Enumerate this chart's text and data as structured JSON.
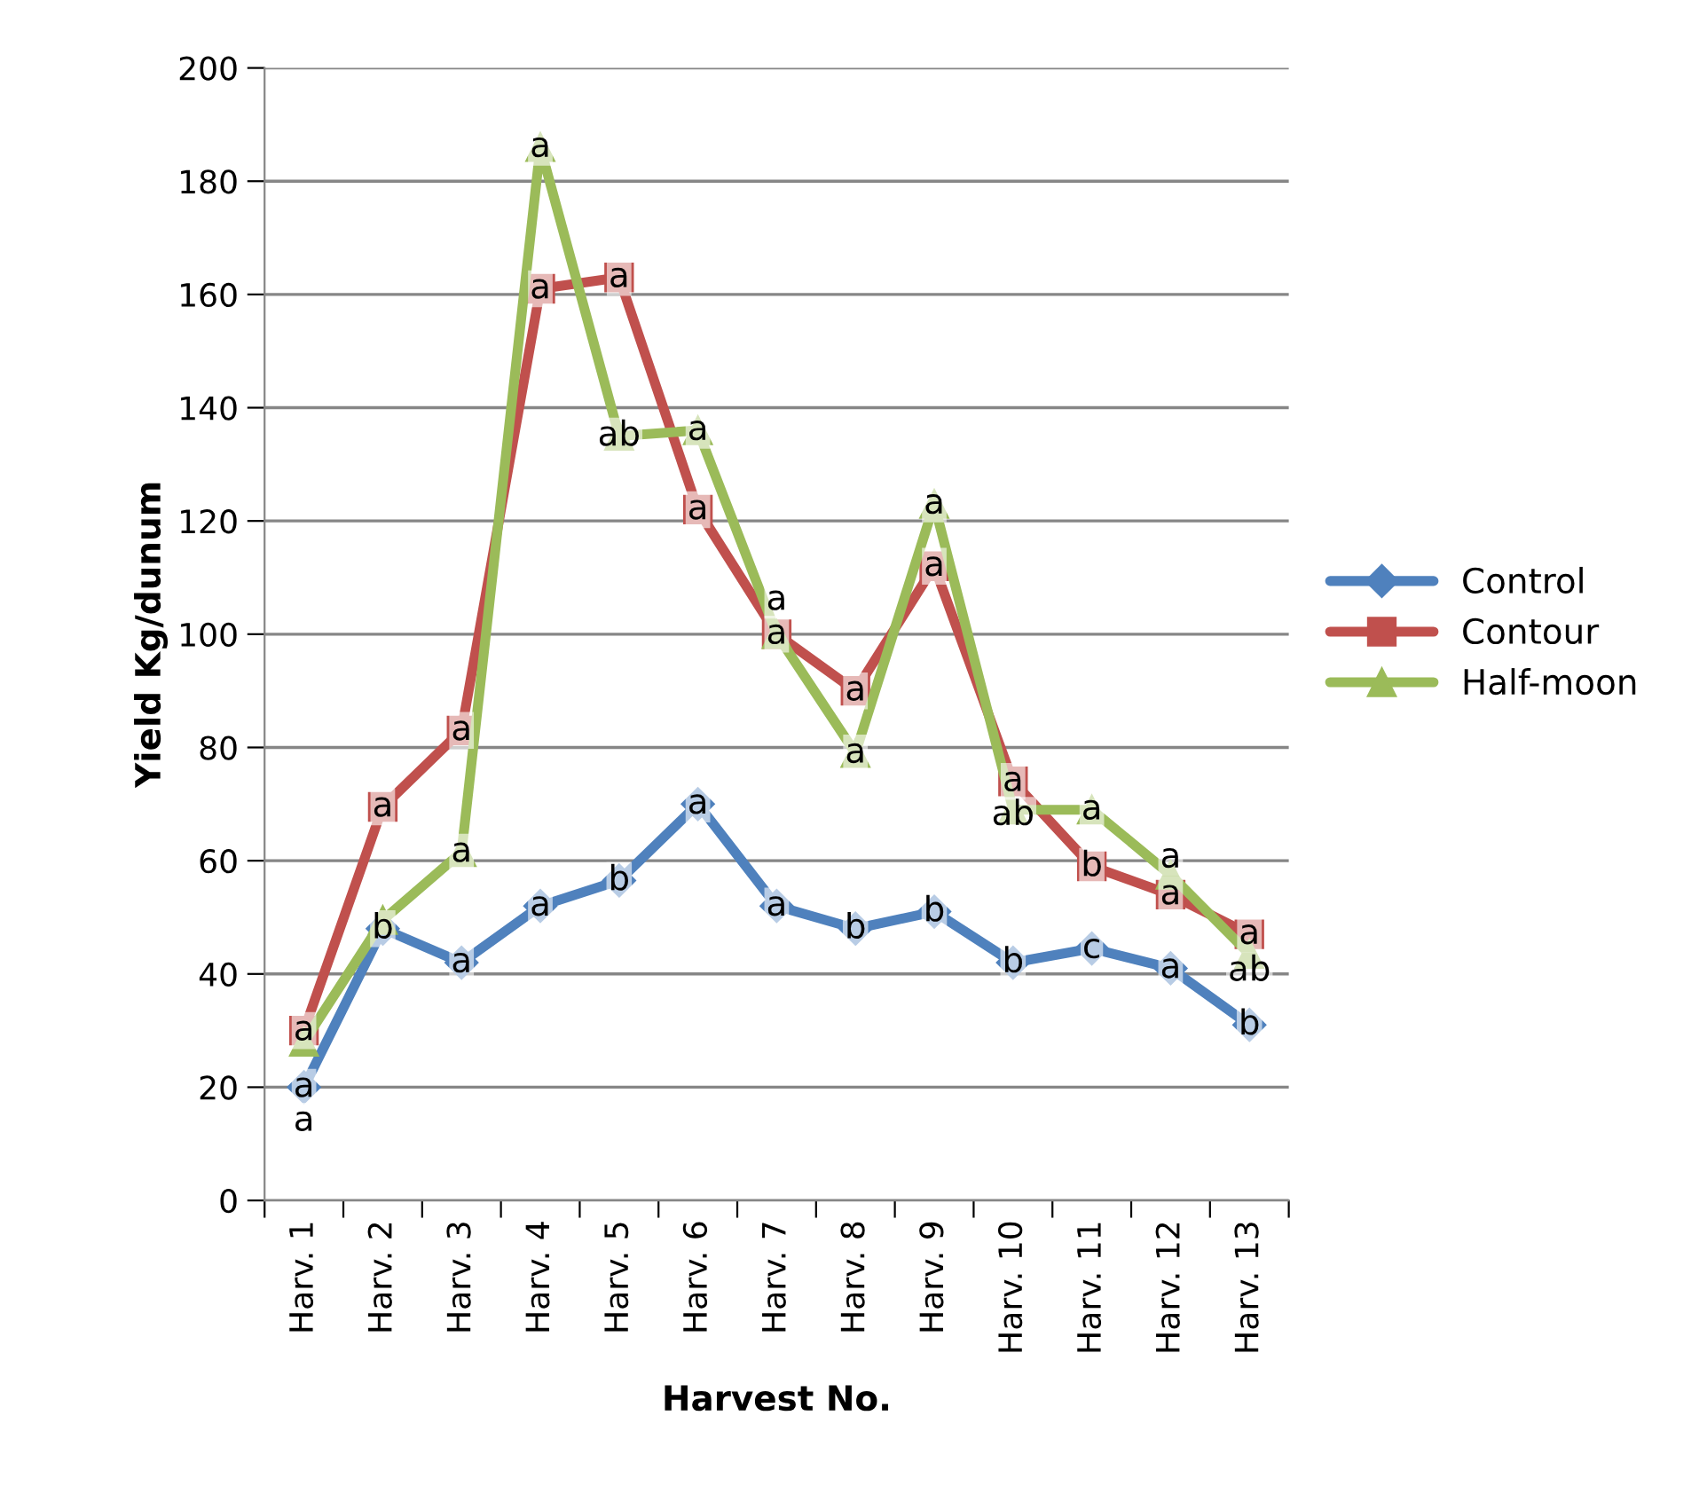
{
  "chart_data": {
    "type": "line",
    "xlabel": "Harvest No.",
    "ylabel": "Yield Kg/dunum",
    "categories": [
      "Harv. 1",
      "Harv. 2",
      "Harv. 3",
      "Harv. 4",
      "Harv. 5",
      "Harv. 6",
      "Harv. 7",
      "Harv. 8",
      "Harv. 9",
      "Harv. 10",
      "Harv. 11",
      "Harv. 12",
      "Harv. 13"
    ],
    "series": [
      {
        "name": "Control",
        "color": "#4f81bd",
        "marker": "diamond",
        "values": [
          20,
          48,
          42,
          52,
          56.5,
          70,
          52,
          48,
          51,
          42,
          44.5,
          41,
          31
        ],
        "value_labels": [
          "a",
          "b",
          "a",
          "a",
          "b",
          "a",
          "a",
          "b",
          "b",
          "b",
          "c",
          "a",
          "b"
        ]
      },
      {
        "name": "Contour",
        "color": "#c0504d",
        "marker": "square",
        "values": [
          30,
          69.5,
          83,
          161,
          163,
          122,
          100,
          90,
          112,
          74,
          59,
          54,
          47
        ],
        "value_labels": [
          "a",
          "a",
          "a",
          "a",
          "a",
          "a",
          "a",
          "a",
          "a",
          "a",
          "b",
          "a",
          "a"
        ]
      },
      {
        "name": "Half-moon",
        "color": "#9bbb59",
        "marker": "triangle",
        "values": [
          28,
          49.5,
          61.5,
          186,
          135,
          136,
          100,
          79,
          123,
          69,
          69,
          57.5,
          43.5
        ],
        "value_labels": [
          "a",
          null,
          "a",
          "a",
          "ab",
          "a",
          "a",
          "a",
          "a",
          "ab",
          "a",
          "a",
          "ab"
        ]
      }
    ],
    "ylim": [
      0,
      200
    ],
    "yticks": [
      0,
      20,
      40,
      60,
      80,
      100,
      120,
      140,
      160,
      180,
      200
    ],
    "grid": "y",
    "legend": "right",
    "line_style": "solid"
  }
}
